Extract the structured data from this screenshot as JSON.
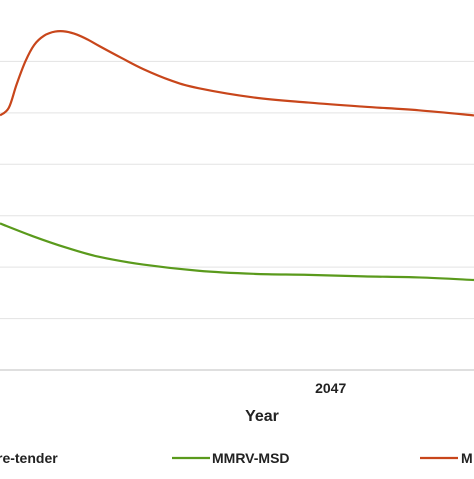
{
  "chart_data": {
    "type": "line",
    "xlabel": "Year",
    "x_tick_labels": [
      {
        "year": 2047,
        "label": "2047"
      }
    ],
    "xlim": [
      2017,
      2060
    ],
    "ylim": [
      0,
      7
    ],
    "gridlines_y": [
      1,
      2,
      3,
      4,
      5,
      6
    ],
    "grid": true,
    "legend_placement": "bottom",
    "series": [
      {
        "name": "MMRV-MSD",
        "color": "#5a9a1c",
        "x": [
          2017,
          2020,
          2023,
          2026,
          2030,
          2035,
          2040,
          2045,
          2050,
          2055,
          2060
        ],
        "y": [
          2.85,
          2.6,
          2.38,
          2.2,
          2.05,
          1.93,
          1.87,
          1.85,
          1.82,
          1.8,
          1.75
        ]
      },
      {
        "name": "M",
        "color": "#c8461b",
        "x": [
          2017,
          2017.8,
          2018.5,
          2019.3,
          2020.1,
          2021,
          2022,
          2023,
          2024,
          2025,
          2026,
          2028,
          2030,
          2032.5,
          2035,
          2040,
          2045,
          2050,
          2055,
          2060
        ],
        "y": [
          4.95,
          5.1,
          5.55,
          6.0,
          6.32,
          6.5,
          6.58,
          6.58,
          6.52,
          6.42,
          6.3,
          6.07,
          5.85,
          5.63,
          5.48,
          5.3,
          5.2,
          5.12,
          5.05,
          4.95
        ]
      }
    ],
    "legend": [
      {
        "label": "re-tender",
        "color": ""
      },
      {
        "label": "MMRV-MSD",
        "color": "#5a9a1c"
      },
      {
        "label": "M",
        "color": "#c8461b"
      }
    ]
  }
}
